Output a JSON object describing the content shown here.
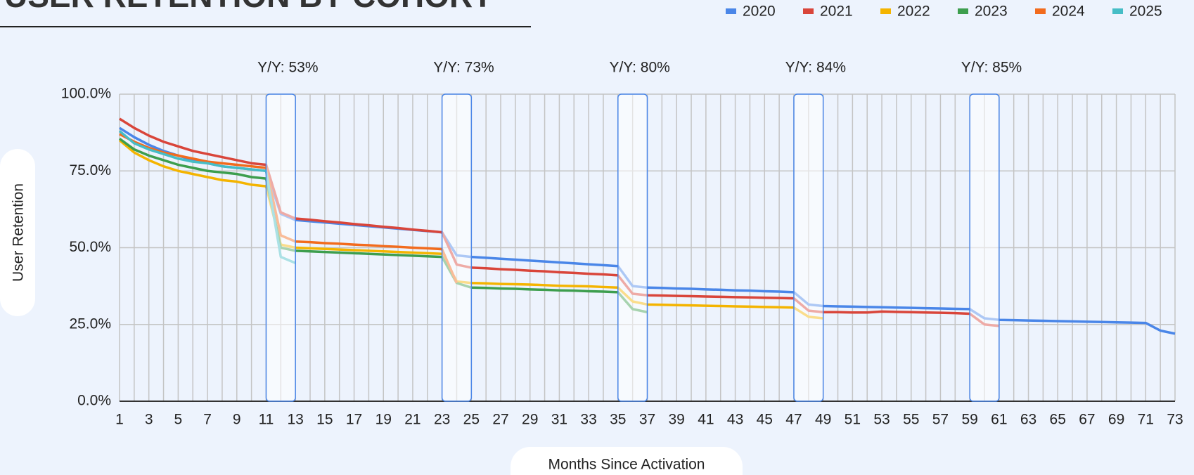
{
  "chart_data": {
    "type": "line",
    "title": "USER RETENTION BY COHORT",
    "x_label": "Months Since Activation",
    "y_label": "User Retention",
    "x": [
      1,
      2,
      3,
      4,
      5,
      6,
      7,
      8,
      9,
      10,
      11,
      12,
      13,
      14,
      15,
      16,
      17,
      18,
      19,
      20,
      21,
      22,
      23,
      24,
      25,
      26,
      27,
      28,
      29,
      30,
      31,
      32,
      33,
      34,
      35,
      36,
      37,
      38,
      39,
      40,
      41,
      42,
      43,
      44,
      45,
      46,
      47,
      48,
      49,
      50,
      51,
      52,
      53,
      54,
      55,
      56,
      57,
      58,
      59,
      60,
      61,
      62,
      63,
      64,
      65,
      66,
      67,
      68,
      69,
      70,
      71,
      72,
      73
    ],
    "xlim": [
      1,
      73
    ],
    "xticks": [
      1,
      3,
      5,
      7,
      9,
      11,
      13,
      15,
      17,
      19,
      21,
      23,
      25,
      27,
      29,
      31,
      33,
      35,
      37,
      39,
      41,
      43,
      45,
      47,
      49,
      51,
      53,
      55,
      57,
      59,
      61,
      63,
      65,
      67,
      69,
      71,
      73
    ],
    "ylim": [
      0,
      100
    ],
    "yticks": [
      {
        "value": 0,
        "label": "0.0%"
      },
      {
        "value": 25,
        "label": "25.0%"
      },
      {
        "value": 50,
        "label": "50.0%"
      },
      {
        "value": 75,
        "label": "75.0%"
      },
      {
        "value": 100,
        "label": "100.0%"
      }
    ],
    "grid": true,
    "legend": "top-right",
    "annotations": [
      {
        "text": "Y/Y: 53%",
        "x": 12
      },
      {
        "text": "Y/Y: 73%",
        "x": 24
      },
      {
        "text": "Y/Y: 80%",
        "x": 36
      },
      {
        "text": "Y/Y: 84%",
        "x": 48
      },
      {
        "text": "Y/Y: 85%",
        "x": 60
      }
    ],
    "series": [
      {
        "name": "2020",
        "color": "#4a86e8",
        "values": [
          89,
          86,
          83.5,
          81.5,
          80,
          78.5,
          77.5,
          76.5,
          76,
          75.5,
          75,
          61,
          59,
          58.6,
          58.2,
          57.8,
          57.4,
          57,
          56.6,
          56.2,
          55.8,
          55.4,
          55,
          47.5,
          47,
          46.7,
          46.4,
          46.1,
          45.8,
          45.5,
          45.2,
          44.9,
          44.6,
          44.3,
          44,
          37.5,
          37,
          36.9,
          36.7,
          36.6,
          36.4,
          36.3,
          36.1,
          36,
          35.8,
          35.7,
          35.5,
          31.5,
          31,
          30.9,
          30.8,
          30.7,
          30.6,
          30.5,
          30.4,
          30.3,
          30.2,
          30.1,
          30,
          27,
          26.5,
          26.4,
          26.3,
          26.2,
          26.1,
          26,
          25.9,
          25.8,
          25.7,
          25.6,
          25.5,
          23,
          22
        ]
      },
      {
        "name": "2021",
        "color": "#d9453a",
        "values": [
          92,
          89,
          86.5,
          84.5,
          83,
          81.5,
          80.5,
          79.5,
          78.5,
          77.5,
          77,
          61.5,
          59.5,
          59.1,
          58.6,
          58.2,
          57.7,
          57.3,
          56.8,
          56.4,
          55.9,
          55.5,
          55,
          44.5,
          43.5,
          43.3,
          43,
          42.8,
          42.5,
          42.3,
          42,
          41.8,
          41.5,
          41.3,
          41,
          35,
          34.5,
          34.4,
          34.3,
          34.2,
          34.1,
          34,
          33.9,
          33.8,
          33.7,
          33.6,
          33.5,
          29.5,
          29,
          29,
          28.9,
          28.9,
          29.2,
          29.1,
          29,
          28.9,
          28.8,
          28.7,
          28.5,
          25,
          24.5,
          null,
          null,
          null,
          null,
          null,
          null,
          null,
          null,
          null,
          null,
          null,
          null
        ]
      },
      {
        "name": "2022",
        "color": "#f4b400",
        "values": [
          85,
          81,
          78.5,
          76.5,
          75,
          74,
          73,
          72,
          71.5,
          70.5,
          70,
          51,
          50,
          49.8,
          49.6,
          49.4,
          49.2,
          49,
          48.8,
          48.6,
          48.4,
          48.2,
          48,
          39,
          38.5,
          38.4,
          38.2,
          38.1,
          38,
          37.8,
          37.6,
          37.5,
          37.4,
          37.2,
          37,
          32.5,
          31.5,
          31.4,
          31.3,
          31.2,
          31.1,
          31,
          30.9,
          30.8,
          30.7,
          30.6,
          30.5,
          27.5,
          27,
          null,
          null,
          null,
          null,
          null,
          null,
          null,
          null,
          null,
          null,
          null,
          null,
          null,
          null,
          null,
          null,
          null,
          null,
          null,
          null,
          null,
          null,
          null,
          null
        ]
      },
      {
        "name": "2023",
        "color": "#3d9e4e",
        "values": [
          85.5,
          82,
          80,
          78.5,
          77,
          76,
          75,
          74.5,
          74,
          73,
          72.5,
          50,
          49,
          48.8,
          48.6,
          48.4,
          48.2,
          48,
          47.8,
          47.6,
          47.4,
          47.2,
          47,
          38.5,
          37,
          36.9,
          36.7,
          36.6,
          36.4,
          36.3,
          36.1,
          36,
          35.8,
          35.7,
          35.5,
          30,
          29,
          null,
          null,
          null,
          null,
          null,
          null,
          null,
          null,
          null,
          null,
          null,
          null,
          null,
          null,
          null,
          null,
          null,
          null,
          null,
          null,
          null,
          null,
          null,
          null,
          null,
          null,
          null,
          null,
          null,
          null,
          null,
          null,
          null,
          null,
          null,
          null
        ]
      },
      {
        "name": "2024",
        "color": "#f26b1d",
        "values": [
          87,
          84.5,
          82.5,
          81,
          80,
          79,
          78,
          77.5,
          77,
          76.5,
          76,
          54,
          52,
          51.8,
          51.5,
          51.3,
          51,
          50.8,
          50.5,
          50.3,
          50,
          49.8,
          49.5,
          38.5,
          null,
          null,
          null,
          null,
          null,
          null,
          null,
          null,
          null,
          null,
          null,
          null,
          null,
          null,
          null,
          null,
          null,
          null,
          null,
          null,
          null,
          null,
          null,
          null,
          null,
          null,
          null,
          null,
          null,
          null,
          null,
          null,
          null,
          null,
          null,
          null,
          null,
          null,
          null,
          null,
          null,
          null,
          null,
          null,
          null,
          null,
          null,
          null,
          null
        ]
      },
      {
        "name": "2025",
        "color": "#46bdc6",
        "values": [
          88,
          84,
          82,
          80.5,
          79,
          78,
          77.5,
          76.5,
          76,
          75.5,
          75,
          47,
          45,
          null,
          null,
          null,
          null,
          null,
          null,
          null,
          null,
          null,
          null,
          null,
          null,
          null,
          null,
          null,
          null,
          null,
          null,
          null,
          null,
          null,
          null,
          null,
          null,
          null,
          null,
          null,
          null,
          null,
          null,
          null,
          null,
          null,
          null,
          null,
          null,
          null,
          null,
          null,
          null,
          null,
          null,
          null,
          null,
          null,
          null,
          null,
          null,
          null,
          null,
          null,
          null,
          null,
          null,
          null,
          null,
          null,
          null,
          null,
          null
        ]
      }
    ]
  }
}
